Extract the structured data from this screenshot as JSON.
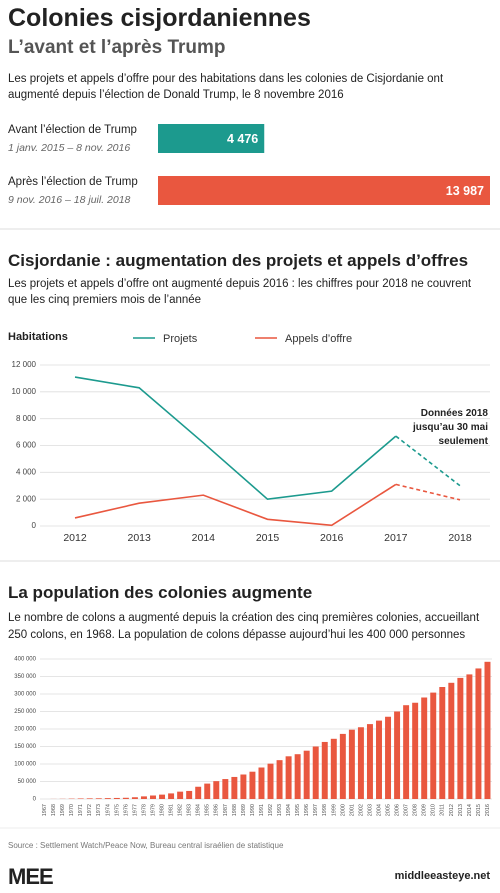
{
  "header": {
    "title": "Colonies cisjordaniennes",
    "subtitle": "L’avant et l’après Trump",
    "description": "Les projets et appels d’offre pour des habitations dans les colonies de Cisjordanie ont augmenté depuis l’élection de Donald Trump, le 8 novembre 2016"
  },
  "chart_data": [
    {
      "type": "hbar",
      "categories": [
        "Avant l’élection de Trump",
        "Après l’élection de Trump"
      ],
      "category_notes": [
        "1 janv. 2015 – 8 nov. 2016",
        "9 nov. 2016 – 18 juil. 2018"
      ],
      "values": [
        4476,
        13987
      ],
      "value_labels": [
        "4 476",
        "13 987"
      ],
      "colors": [
        "#1c9a8e",
        "#e9573f"
      ]
    },
    {
      "type": "line",
      "title": "Cisjordanie : augmentation des projets et appels d’offres",
      "subtitle": "Les projets et appels d’offre ont augmenté depuis 2016 : les chiffres pour 2018 ne couvrent que les cinq premiers mois de l’année",
      "y_label": "Habitations",
      "categories": [
        "2012",
        "2013",
        "2014",
        "2015",
        "2016",
        "2017",
        "2018"
      ],
      "series": [
        {
          "name": "Projets",
          "color": "#1c9a8e",
          "values": [
            11100,
            10300,
            6200,
            2000,
            2600,
            6700,
            3000
          ]
        },
        {
          "name": "Appels d’offre",
          "color": "#e9573f",
          "values": [
            600,
            1700,
            2300,
            500,
            50,
            3100,
            1950
          ]
        }
      ],
      "ylim": [
        0,
        12000
      ],
      "yticks": [
        0,
        {
          "value": 2000,
          "label": "2 000"
        },
        {
          "value": 4000,
          "label": "4 000"
        },
        {
          "value": 6000,
          "label": "6 000"
        },
        {
          "value": 8000,
          "label": "8 000"
        },
        {
          "value": 10000,
          "label": "10 000"
        },
        {
          "value": 12000,
          "label": "12 000"
        }
      ],
      "grid": true,
      "dashed_last_segment": true,
      "annotation": "Données 2018 jusqu’au 30 mai seulement"
    },
    {
      "type": "bar",
      "title": "La population des colonies augmente",
      "subtitle": "Le nombre de colons a augmenté depuis la création des cinq premières colonies, accueillant 250 colons, en 1968. La population de colons dépasse aujourd’hui les 400 000 personnes",
      "categories": [
        "1967",
        "1968",
        "1969",
        "1970",
        "1971",
        "1972",
        "1973",
        "1974",
        "1975",
        "1976",
        "1977",
        "1978",
        "1979",
        "1980",
        "1981",
        "1982",
        "1983",
        "1984",
        "1985",
        "1986",
        "1987",
        "1988",
        "1989",
        "1990",
        "1991",
        "1992",
        "1993",
        "1994",
        "1995",
        "1996",
        "1997",
        "1998",
        "1999",
        "2000",
        "2001",
        "2002",
        "2003",
        "2004",
        "2005",
        "2006",
        "2007",
        "2008",
        "2009",
        "2010",
        "2011",
        "2012",
        "2013",
        "2014",
        "2015",
        "2016"
      ],
      "values": [
        0,
        250,
        500,
        1000,
        1500,
        1800,
        2000,
        2500,
        3000,
        3500,
        5000,
        7500,
        10000,
        12500,
        16000,
        21000,
        23000,
        35000,
        44000,
        51000,
        57000,
        63000,
        70000,
        78000,
        90000,
        101000,
        111000,
        122000,
        128000,
        138000,
        150000,
        163000,
        172000,
        186000,
        198000,
        205000,
        214000,
        224000,
        235000,
        250000,
        268000,
        275000,
        290000,
        304000,
        320000,
        332000,
        346000,
        356000,
        373000,
        392000
      ],
      "color": "#e9573f",
      "ylim": [
        0,
        400000
      ],
      "yticks": [
        0,
        {
          "value": 50000,
          "label": "50 000"
        },
        {
          "value": 100000,
          "label": "100 000"
        },
        {
          "value": 150000,
          "label": "150 000"
        },
        {
          "value": 200000,
          "label": "200 000"
        },
        {
          "value": 250000,
          "label": "250 000"
        },
        {
          "value": 300000,
          "label": "300 000"
        },
        {
          "value": 350000,
          "label": "350 000"
        },
        {
          "value": 400000,
          "label": "400 000"
        }
      ],
      "grid": true
    }
  ],
  "footer": {
    "source": "Source : Settlement Watch/Peace Now, Bureau central israélien de statistique",
    "logo": "MEE",
    "site": "middleeasteye.net"
  }
}
